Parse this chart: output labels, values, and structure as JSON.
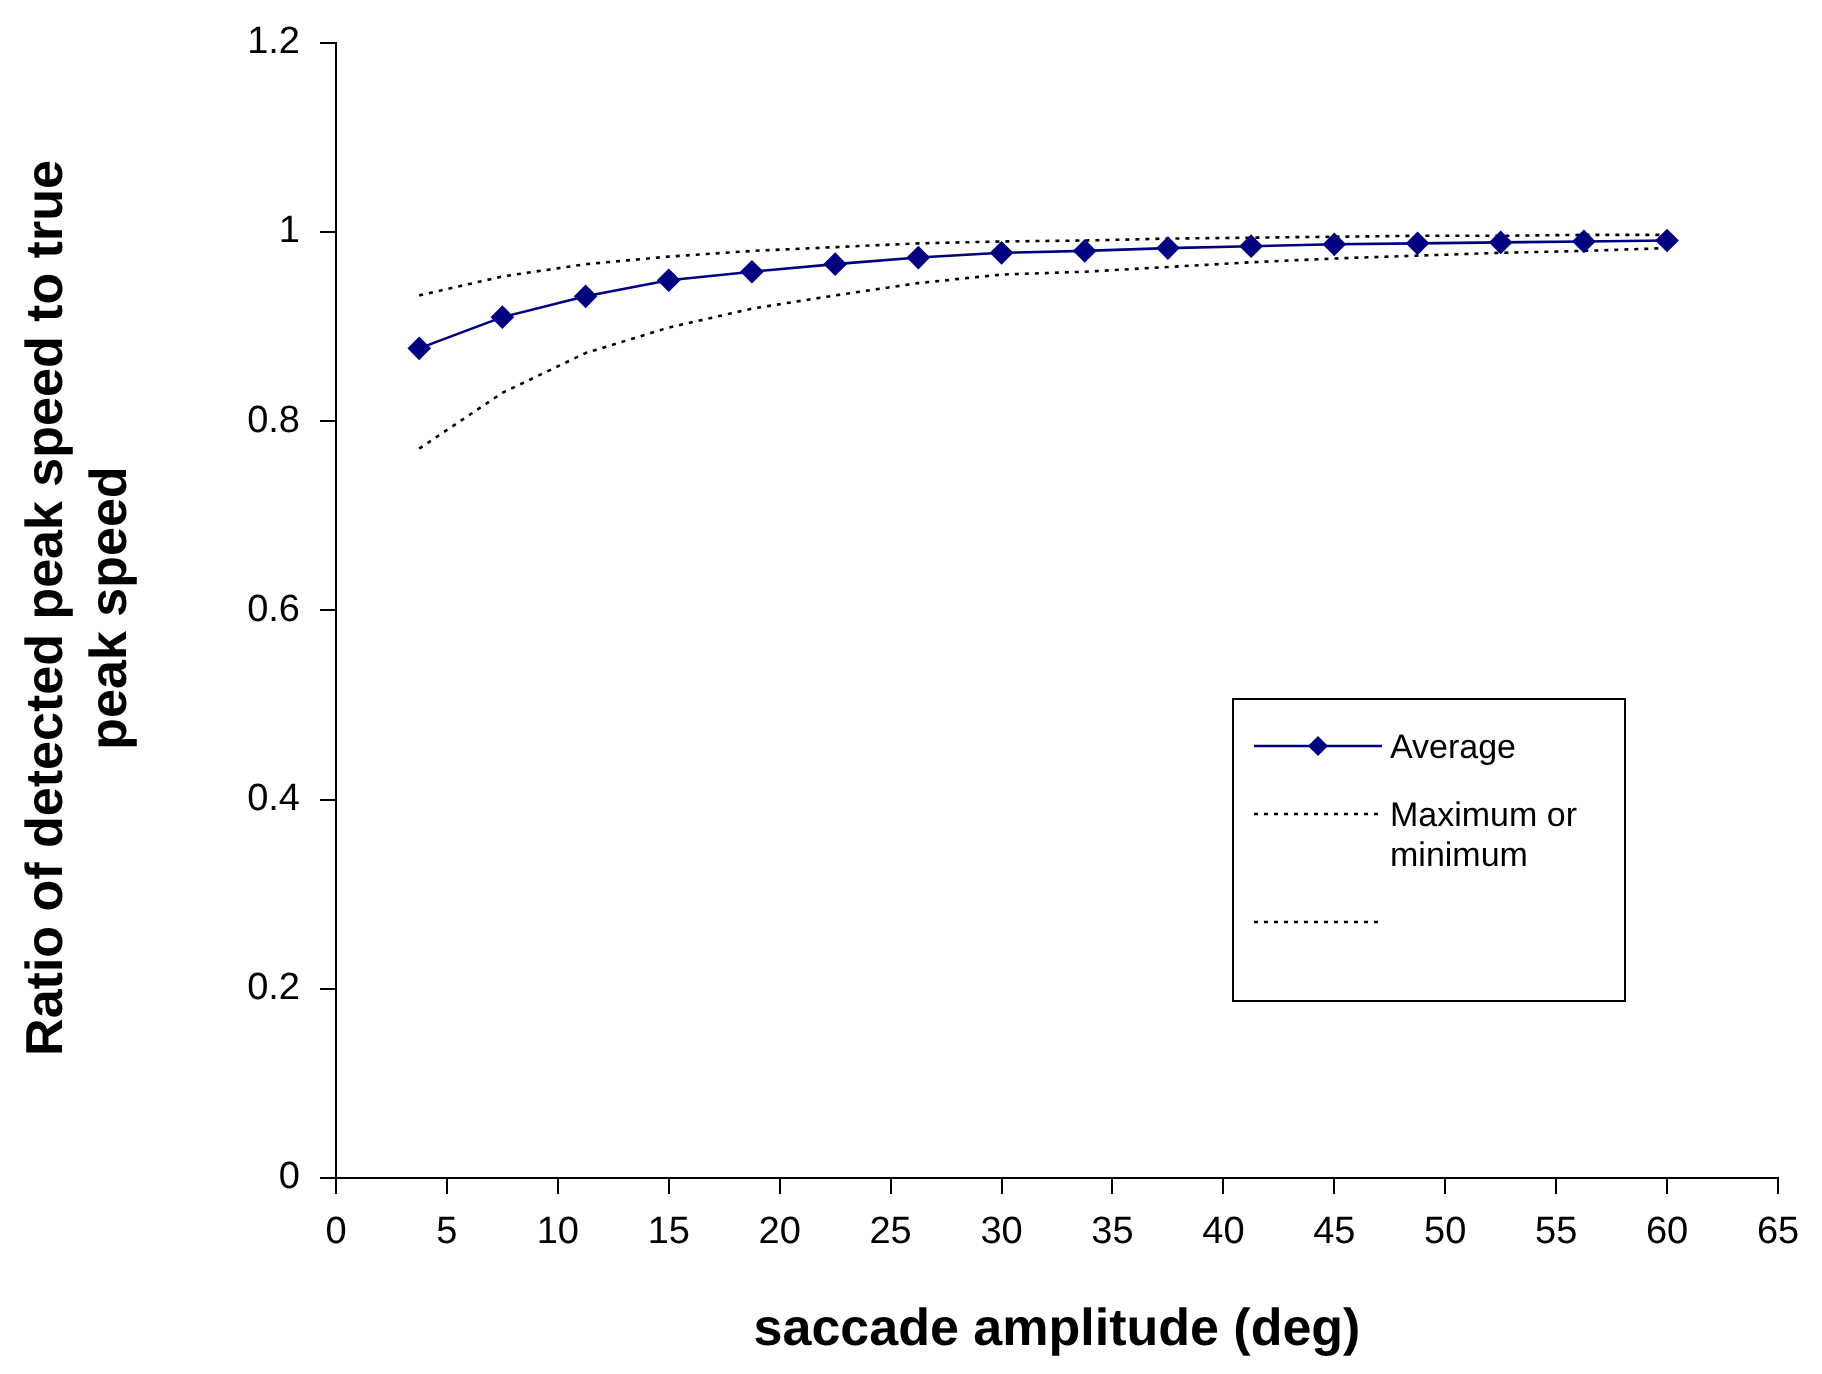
{
  "chart_data": {
    "type": "line",
    "xlabel": "saccade amplitude (deg)",
    "ylabel": "Ratio of detected peak speed to true peak speed",
    "x": [
      3.75,
      7.5,
      11.25,
      15,
      18.75,
      22.5,
      26.25,
      30,
      33.75,
      37.5,
      41.25,
      45,
      48.75,
      52.5,
      56.25,
      60
    ],
    "series": [
      {
        "name": "Average",
        "color": "#000080",
        "marker": "diamond",
        "line_style": "solid",
        "values": [
          0.877,
          0.91,
          0.932,
          0.949,
          0.958,
          0.966,
          0.973,
          0.978,
          0.98,
          0.983,
          0.985,
          0.987,
          0.988,
          0.989,
          0.99,
          0.991
        ]
      },
      {
        "name": "Maximum or minimum",
        "color": "#000000",
        "marker": "none",
        "line_style": "dotted",
        "values": [
          0.933,
          0.953,
          0.966,
          0.974,
          0.98,
          0.984,
          0.988,
          0.99,
          0.991,
          0.993,
          0.994,
          0.995,
          0.996,
          0.996,
          0.997,
          0.997
        ]
      },
      {
        "color": "#000000",
        "marker": "none",
        "line_style": "dotted",
        "values": [
          0.771,
          0.83,
          0.872,
          0.899,
          0.919,
          0.933,
          0.946,
          0.955,
          0.958,
          0.963,
          0.968,
          0.972,
          0.975,
          0.978,
          0.98,
          0.983
        ]
      }
    ],
    "xlim": [
      0,
      65
    ],
    "xticks": [
      0,
      5,
      10,
      15,
      20,
      25,
      30,
      35,
      40,
      45,
      50,
      55,
      60,
      65
    ],
    "ylim": [
      0,
      1.2
    ],
    "yticks": [
      0,
      0.2,
      0.4,
      0.6,
      0.8,
      1,
      1.2
    ],
    "grid": false,
    "legend": "bottom right"
  }
}
